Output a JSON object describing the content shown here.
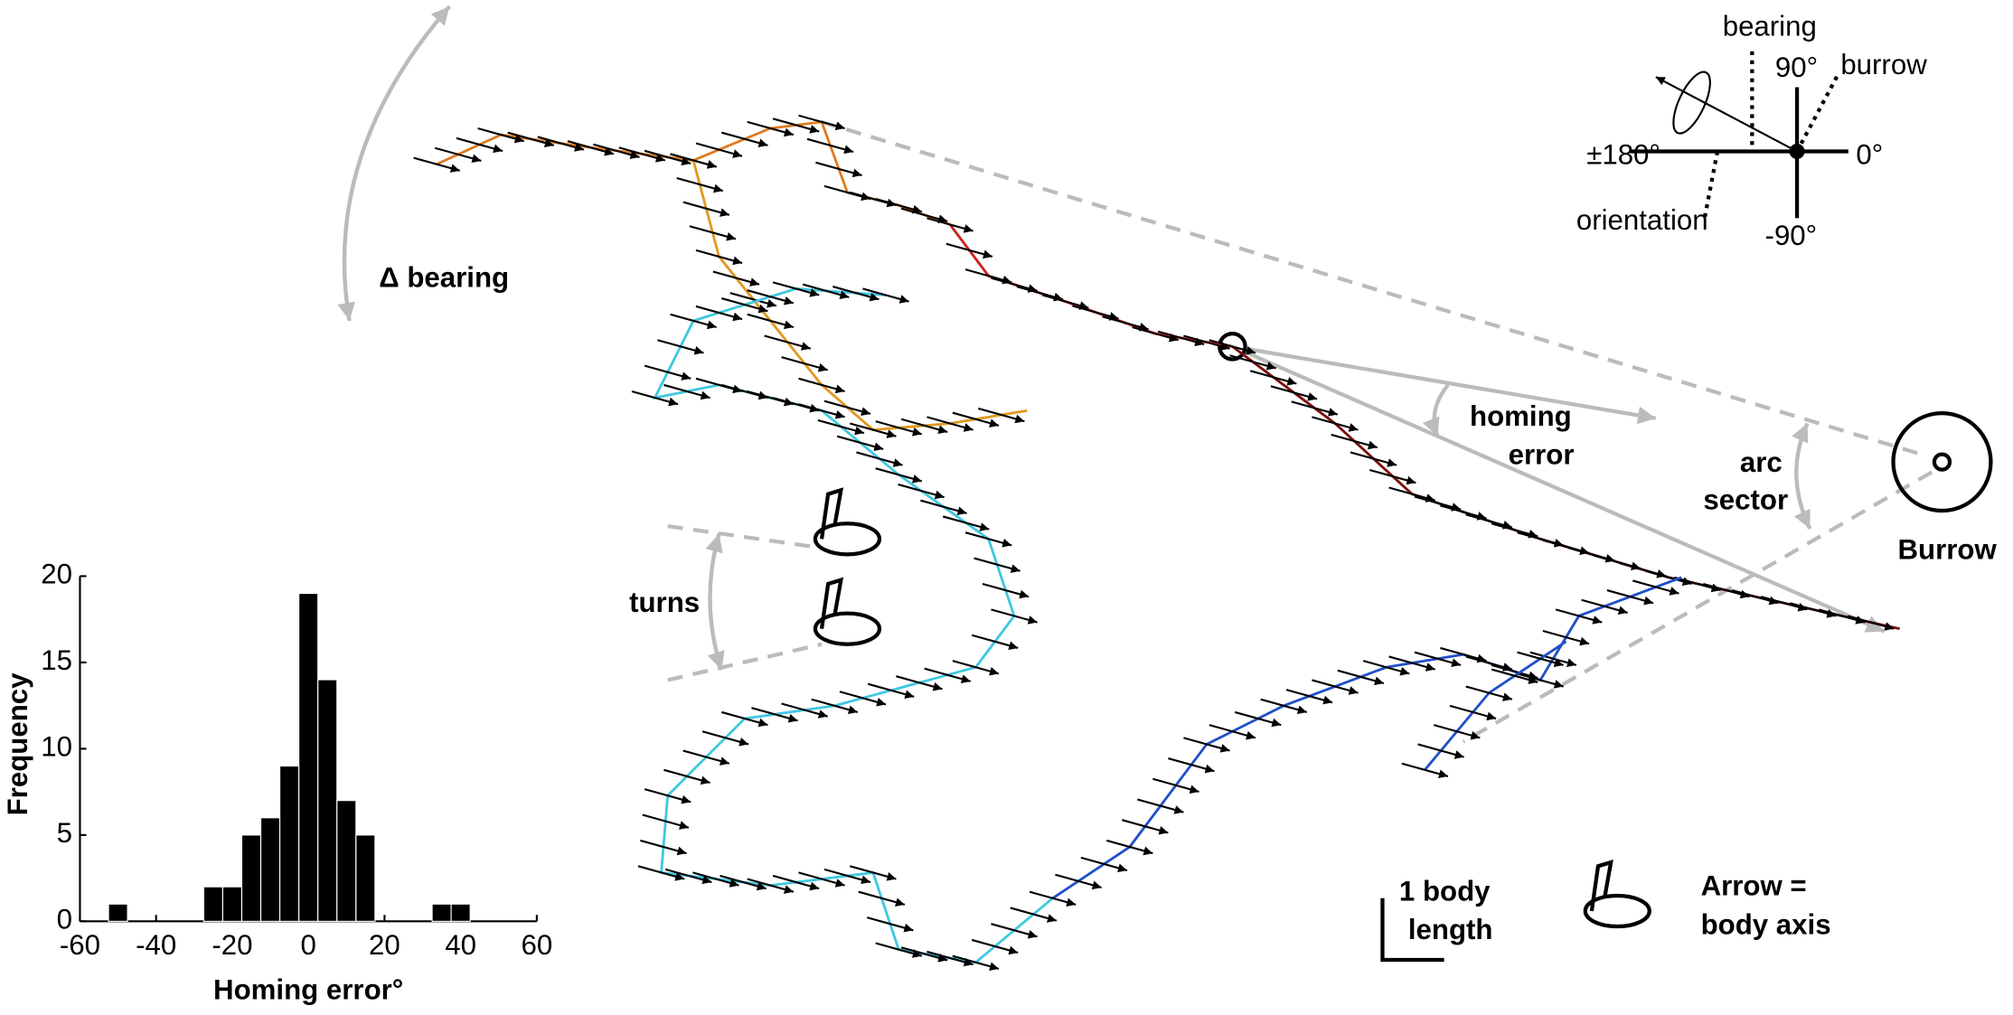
{
  "chart_data": {
    "type": "histogram",
    "xlabel": "Homing error°",
    "ylabel": "Frequency",
    "bins": [
      -52.5,
      -47.5,
      -42.5,
      -37.5,
      -32.5,
      -27.5,
      -22.5,
      -17.5,
      -12.5,
      -7.5,
      -2.5,
      2.5,
      7.5,
      12.5,
      17.5,
      22.5,
      27.5,
      32.5,
      37.5,
      42.5
    ],
    "values": [
      1,
      0,
      0,
      0,
      0,
      2,
      2,
      5,
      6,
      9,
      19,
      14,
      7,
      5,
      0,
      0,
      0,
      1,
      1
    ],
    "color": "#000000",
    "xlim": [
      -60,
      60
    ],
    "xticks": [
      -60,
      -40,
      -20,
      0,
      20,
      40,
      60
    ],
    "ylim": [
      0,
      20
    ],
    "yticks": [
      0,
      5,
      10,
      15,
      20
    ],
    "annotations": {
      "delta_bearing": "Δ bearing",
      "homing_error": [
        "homing",
        "error"
      ],
      "arc_sector": [
        "arc",
        "sector"
      ],
      "burrow_label": "Burrow",
      "turns": "turns",
      "scale": [
        "1 body",
        "length"
      ],
      "arrow_legend": [
        "Arrow =",
        "body axis"
      ],
      "compass": {
        "bearing": "bearing",
        "up": "90°",
        "burrow": "burrow",
        "left": "±180°",
        "right": "0°",
        "orientation": "orientation",
        "down": "-90°"
      }
    }
  }
}
